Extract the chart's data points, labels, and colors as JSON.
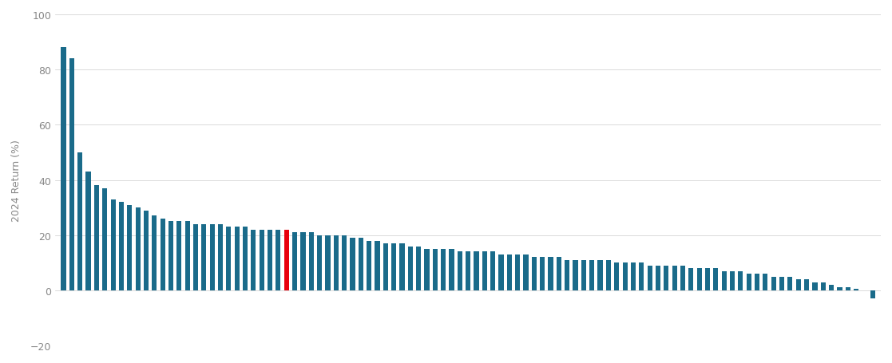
{
  "values": [
    88,
    84,
    50,
    43,
    38,
    37,
    33,
    32,
    31,
    30,
    29,
    27,
    26,
    25,
    25,
    25,
    24,
    24,
    24,
    24,
    23,
    23,
    23,
    22,
    22,
    22,
    22,
    22,
    21,
    21,
    21,
    20,
    20,
    20,
    20,
    19,
    19,
    18,
    18,
    17,
    17,
    17,
    16,
    16,
    15,
    15,
    15,
    15,
    14,
    14,
    14,
    14,
    14,
    13,
    13,
    13,
    13,
    12,
    12,
    12,
    12,
    11,
    11,
    11,
    11,
    11,
    11,
    10,
    10,
    10,
    10,
    9,
    9,
    9,
    9,
    9,
    8,
    8,
    8,
    8,
    7,
    7,
    7,
    6,
    6,
    6,
    5,
    5,
    5,
    4,
    4,
    3,
    3,
    2,
    1,
    1,
    0.5,
    0,
    -3
  ],
  "benchmark_index": 27,
  "bar_color": "#1a6b8a",
  "benchmark_color": "#e8000d",
  "ylabel": "2024 Return (%)",
  "ylim": [
    -20,
    100
  ],
  "yticks": [
    -20,
    0,
    20,
    40,
    60,
    80,
    100
  ],
  "background_color": "#ffffff",
  "grid_color": "#cccccc"
}
